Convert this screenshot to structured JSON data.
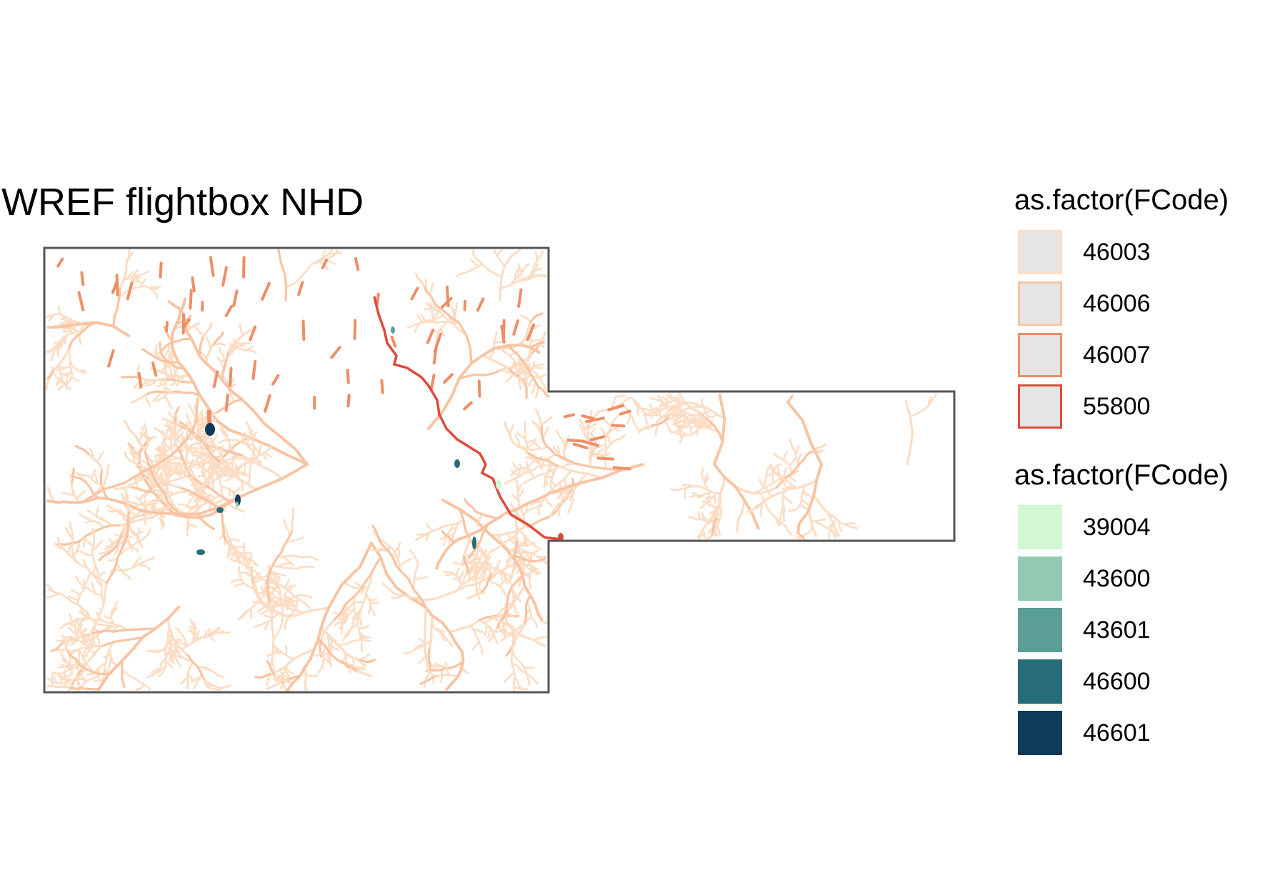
{
  "title": "WREF flightbox NHD",
  "legends": [
    {
      "title": "as.factor(FCode)",
      "kind": "line",
      "items": [
        {
          "label": "46003",
          "color": "#FCDDC4"
        },
        {
          "label": "46006",
          "color": "#F8C4A3"
        },
        {
          "label": "46007",
          "color": "#EE8E67"
        },
        {
          "label": "55800",
          "color": "#DE4A3B"
        }
      ]
    },
    {
      "title": "as.factor(FCode)",
      "kind": "fill",
      "items": [
        {
          "label": "39004",
          "color": "#D2F8D3"
        },
        {
          "label": "43600",
          "color": "#92CBB1"
        },
        {
          "label": "43601",
          "color": "#5A9E96"
        },
        {
          "label": "46600",
          "color": "#276D78"
        },
        {
          "label": "46601",
          "color": "#0F3B5A"
        }
      ]
    }
  ],
  "map": {
    "boundary_color": "#555555",
    "swatch_fill": "#E5E5E5"
  }
}
